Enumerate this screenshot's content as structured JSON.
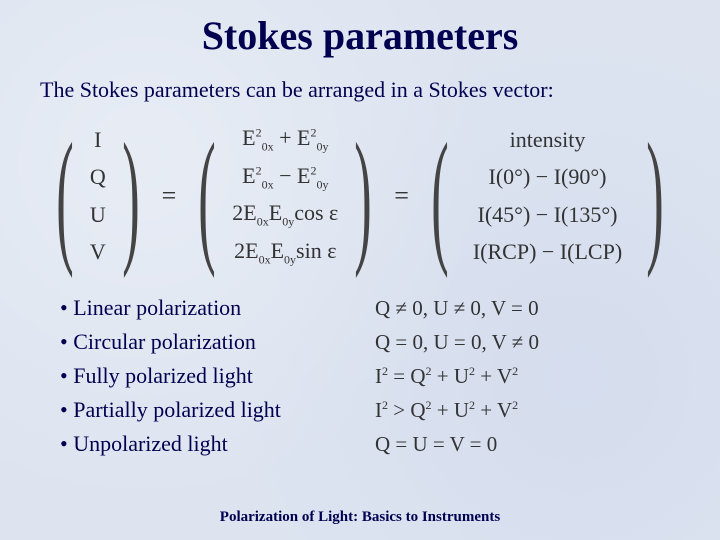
{
  "title": "Stokes parameters",
  "intro": "The Stokes parameters can be arranged in a Stokes vector:",
  "equation": {
    "col1": [
      "I",
      "Q",
      "U",
      "V"
    ],
    "col2_plain": [
      "E0x^2 + E0y^2",
      "E0x^2 - E0y^2",
      "2E0x E0y cos ε",
      "2E0x E0y sin ε"
    ],
    "col3_plain": [
      "intensity",
      "I(0°) − I(90°)",
      "I(45°) − I(135°)",
      "I(RCP) − I(LCP)"
    ]
  },
  "bullets": {
    "b1": "• Linear polarization",
    "b2": "• Circular polarization",
    "b3": "• Fully polarized light",
    "b4": "• Partially polarized light",
    "b5": "• Unpolarized light"
  },
  "conditions_plain": {
    "c1": "Q ≠ 0, U ≠ 0, V = 0",
    "c2": "Q = 0, U = 0, V ≠ 0",
    "c3": "I^2 = Q^2 + U^2 + V^2",
    "c4": "I^2 > Q^2 + U^2 + V^2",
    "c5": "Q = U = V = 0"
  },
  "footer": "Polarization of Light: Basics to Instruments",
  "colors": {
    "background": "#dde4f0",
    "text_main": "#000050",
    "text_math": "#333333"
  }
}
